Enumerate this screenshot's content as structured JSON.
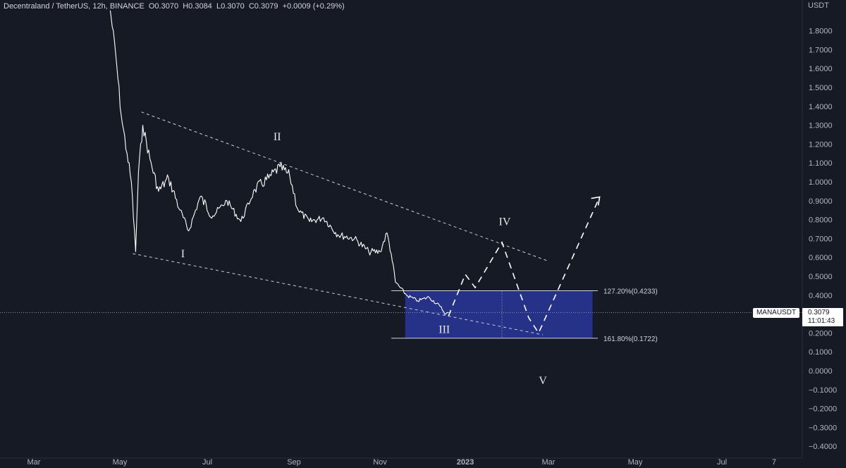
{
  "header": {
    "symbol": "Decentraland / TetherUS, 12h, BINANCE",
    "open_label": "O",
    "open": "0.3070",
    "high_label": "H",
    "high": "0.3084",
    "low_label": "L",
    "low": "0.3070",
    "close_label": "C",
    "close": "0.3079",
    "change": "+0.0009 (+0.29%)"
  },
  "price_axis": {
    "unit": "USDT"
  },
  "symbol_tag": "MANAUSDT",
  "price_tag": {
    "price": "0.3079",
    "countdown": "11:01:43"
  },
  "fib_levels": [
    {
      "label": "127.20%(0.4233)",
      "price": 0.4233
    },
    {
      "label": "161.80%(0.1722)",
      "price": 0.1722
    }
  ],
  "wave_labels": [
    "I",
    "II",
    "III",
    "IV",
    "V"
  ],
  "colors": {
    "background": "#161a25",
    "price_line": "#ffffff",
    "target_box": "#283593",
    "grid_dotted": "#8a8f9a"
  },
  "chart_data": {
    "type": "line",
    "title": "Decentraland / TetherUS, 12h, BINANCE",
    "xlabel": "",
    "ylabel": "USDT",
    "ylim": [
      -0.4,
      1.9
    ],
    "x_ticks": [
      "Mar",
      "May",
      "Jul",
      "Sep",
      "Nov",
      "2023",
      "Mar",
      "May",
      "Jul",
      "7"
    ],
    "y_ticks": [
      "1.8000",
      "1.7000",
      "1.6000",
      "1.5000",
      "1.4000",
      "1.3000",
      "1.2000",
      "1.1000",
      "1.0000",
      "0.9000",
      "0.8000",
      "0.7000",
      "0.6000",
      "0.5000",
      "0.4000",
      "0.3000",
      "0.2000",
      "0.1000",
      "0.0000",
      "−0.1000",
      "−0.2000",
      "−0.3000",
      "−0.4000"
    ],
    "series": [
      {
        "values": [
          [
            "2022-04-24",
            1.92
          ],
          [
            "2022-04-28",
            1.68
          ],
          [
            "2022-05-02",
            1.35
          ],
          [
            "2022-05-06",
            1.15
          ],
          [
            "2022-05-09",
            1.0
          ],
          [
            "2022-05-12",
            0.63
          ],
          [
            "2022-05-14",
            1.05
          ],
          [
            "2022-05-17",
            1.3
          ],
          [
            "2022-05-22",
            1.12
          ],
          [
            "2022-05-28",
            0.95
          ],
          [
            "2022-06-04",
            1.02
          ],
          [
            "2022-06-12",
            0.85
          ],
          [
            "2022-06-18",
            0.74
          ],
          [
            "2022-06-26",
            0.92
          ],
          [
            "2022-07-05",
            0.82
          ],
          [
            "2022-07-15",
            0.9
          ],
          [
            "2022-07-25",
            0.79
          ],
          [
            "2022-08-04",
            0.96
          ],
          [
            "2022-08-14",
            1.02
          ],
          [
            "2022-08-22",
            1.08
          ],
          [
            "2022-08-29",
            1.03
          ],
          [
            "2022-09-04",
            0.85
          ],
          [
            "2022-09-12",
            0.79
          ],
          [
            "2022-09-22",
            0.81
          ],
          [
            "2022-10-02",
            0.72
          ],
          [
            "2022-10-14",
            0.7
          ],
          [
            "2022-10-24",
            0.63
          ],
          [
            "2022-11-01",
            0.63
          ],
          [
            "2022-11-06",
            0.73
          ],
          [
            "2022-11-09",
            0.62
          ],
          [
            "2022-11-12",
            0.47
          ],
          [
            "2022-11-20",
            0.4
          ],
          [
            "2022-11-28",
            0.37
          ],
          [
            "2022-12-06",
            0.39
          ],
          [
            "2022-12-14",
            0.34
          ],
          [
            "2022-12-18",
            0.3
          ],
          [
            "2022-12-20",
            0.3079
          ]
        ]
      }
    ],
    "projection": [
      [
        "2022-12-20",
        0.29
      ],
      [
        "2023-01-01",
        0.51
      ],
      [
        "2023-01-08",
        0.44
      ],
      [
        "2023-01-27",
        0.68
      ],
      [
        "2023-02-15",
        0.28
      ],
      [
        "2023-02-22",
        0.2
      ],
      [
        "2023-04-06",
        0.92
      ]
    ],
    "upper_trendline": [
      [
        "2022-05-16",
        1.37
      ],
      [
        "2023-03-01",
        0.58
      ]
    ],
    "lower_trendline": [
      [
        "2022-05-10",
        0.62
      ],
      [
        "2023-02-25",
        0.19
      ]
    ],
    "target_zone": {
      "x0": "2022-11-19",
      "x1": "2023-04-01",
      "y0": 0.1722,
      "y1": 0.4233
    },
    "last_price": 0.3079,
    "grid": false
  }
}
